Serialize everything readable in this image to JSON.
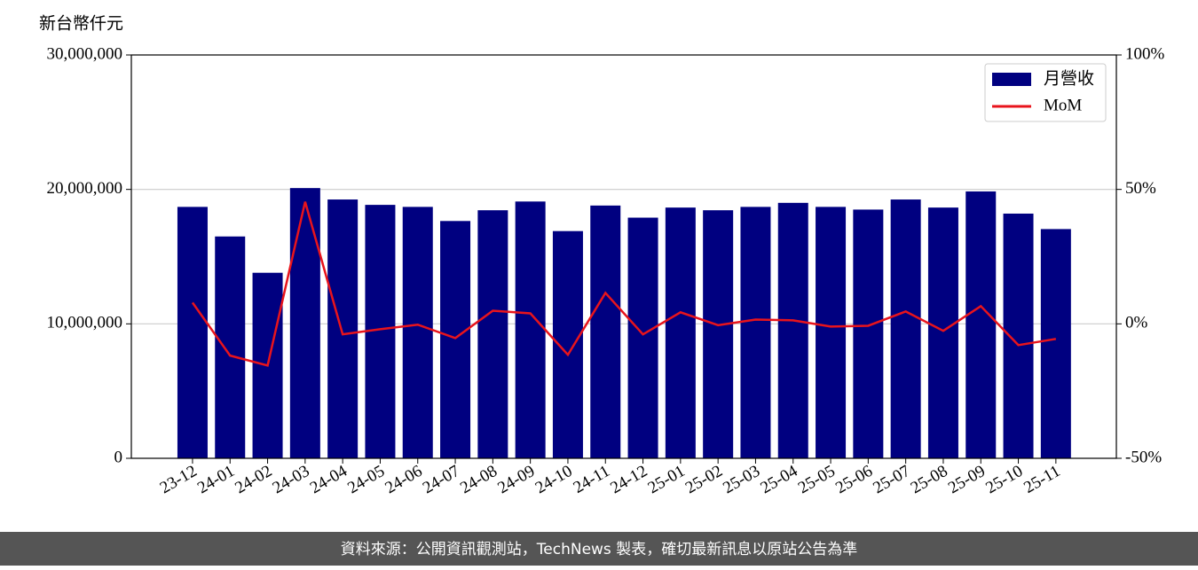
{
  "chart_data": {
    "type": "bar-line",
    "y_label": "新台幣仟元",
    "categories": [
      "23-12",
      "24-01",
      "24-02",
      "24-03",
      "24-04",
      "24-05",
      "24-06",
      "24-07",
      "24-08",
      "24-09",
      "24-10",
      "24-11",
      "24-12",
      "25-01",
      "25-02",
      "25-03",
      "25-04",
      "25-05",
      "25-06",
      "25-07",
      "25-08",
      "25-09",
      "25-10",
      "25-11"
    ],
    "series": [
      {
        "name": "月營收",
        "type": "bar",
        "color": "#000080",
        "values": [
          18700000,
          16500000,
          13800000,
          20100000,
          19250000,
          18850000,
          18700000,
          17650000,
          18450000,
          19100000,
          16900000,
          18800000,
          17900000,
          18650000,
          18450000,
          18700000,
          19000000,
          18700000,
          18500000,
          19250000,
          18650000,
          19850000,
          18200000,
          17050000
        ]
      },
      {
        "name": "MoM",
        "type": "line",
        "axis": "y2",
        "color": "#e8141c",
        "values": [
          7.9,
          -11.8,
          -15.5,
          45.4,
          -3.9,
          -2,
          -0.3,
          -5.3,
          4.9,
          3.9,
          -11.5,
          11.5,
          -3.9,
          4.3,
          -0.5,
          1.6,
          1.3,
          -1,
          -0.7,
          4.6,
          -2.6,
          6.6,
          -7.9,
          -5.6
        ]
      }
    ],
    "ylim": [
      0,
      30000000
    ],
    "yticks": [
      0,
      {
        "value": 10000000,
        "label": "10,000,000"
      },
      {
        "value": 20000000,
        "label": "20,000,000"
      },
      {
        "value": 30000000,
        "label": "30,000,000"
      }
    ],
    "y2lim": [
      -50,
      100
    ],
    "y2ticks": [
      {
        "value": -50,
        "label": "-50%"
      },
      {
        "value": 0,
        "label": "0%"
      },
      {
        "value": 50,
        "label": "50%"
      },
      {
        "value": 100,
        "label": "100%"
      }
    ],
    "grid": true,
    "legend": "upper right",
    "footer": "資料來源：公開資訊觀測站，TechNews 製表，確切最新訊息以原站公告為準"
  }
}
